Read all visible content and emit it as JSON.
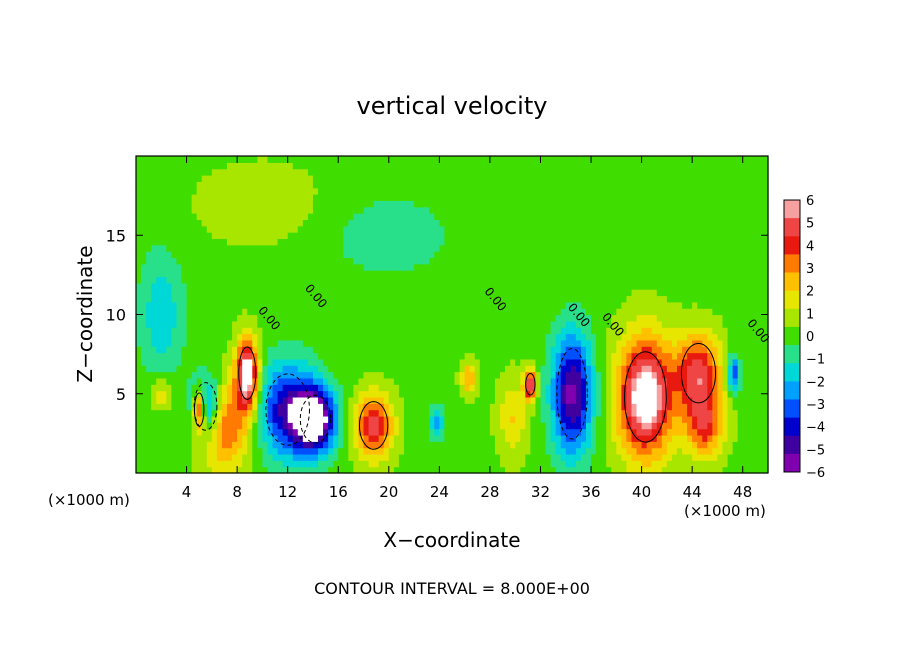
{
  "chart_data": {
    "type": "heatmap",
    "title": "vertical velocity",
    "xlabel": "X−coordinate",
    "ylabel": "Z−coordinate",
    "x_unit_left": "(×1000 m)",
    "x_unit_right": "(×1000 m)",
    "xlim": [
      0,
      50
    ],
    "ylim": [
      0,
      20
    ],
    "xticks": [
      4,
      8,
      12,
      16,
      20,
      24,
      28,
      32,
      36,
      40,
      44,
      48
    ],
    "yticks": [
      5,
      10,
      15
    ],
    "footer": "CONTOUR INTERVAL = 8.000E+00",
    "colorbar": {
      "min": -6,
      "max": 6,
      "labels": [
        "6",
        "5",
        "4",
        "3",
        "2",
        "1",
        "0",
        "−1",
        "−2",
        "−3",
        "−4",
        "−5",
        "−6"
      ],
      "colors": [
        "#f7a0a0",
        "#f04545",
        "#e81a10",
        "#ff7a00",
        "#ffc000",
        "#e6e600",
        "#a8e600",
        "#40dd00",
        "#28e08a",
        "#00d8d8",
        "#00a0ff",
        "#0050ff",
        "#0000cc",
        "#4000a0",
        "#8000b0"
      ]
    },
    "contour_labels": [
      "0.00",
      "0.00",
      "0.00",
      "0.00",
      "0.00",
      "0.00"
    ],
    "features": [
      {
        "x": 5.0,
        "z": 4.0,
        "w": 6,
        "rx": 0.5,
        "rz": 1.4
      },
      {
        "x": 5.5,
        "z": 4.2,
        "w": -5,
        "rx": 1.2,
        "rz": 2.0
      },
      {
        "x": 8.8,
        "z": 6.3,
        "w": 7,
        "rx": 0.9,
        "rz": 2.2
      },
      {
        "x": 7.0,
        "z": 3.0,
        "w": 4,
        "rx": 2.0,
        "rz": 2.8
      },
      {
        "x": 12.0,
        "z": 4.0,
        "w": -5,
        "rx": 2.3,
        "rz": 3.0
      },
      {
        "x": 14.2,
        "z": 3.4,
        "w": -7,
        "rx": 1.6,
        "rz": 2.0
      },
      {
        "x": 18.8,
        "z": 3.0,
        "w": 5,
        "rx": 1.5,
        "rz": 2.0
      },
      {
        "x": 23.8,
        "z": 3.2,
        "w": -3,
        "rx": 0.5,
        "rz": 1.0
      },
      {
        "x": 26.3,
        "z": 6.0,
        "w": 3,
        "rx": 0.6,
        "rz": 1.0
      },
      {
        "x": 29.8,
        "z": 3.5,
        "w": 2,
        "rx": 1.2,
        "rz": 2.5
      },
      {
        "x": 31.2,
        "z": 5.6,
        "w": 6,
        "rx": 0.5,
        "rz": 0.9
      },
      {
        "x": 34.5,
        "z": 5.0,
        "w": -6,
        "rx": 1.6,
        "rz": 3.8
      },
      {
        "x": 40.3,
        "z": 4.8,
        "w": 7,
        "rx": 2.2,
        "rz": 3.8
      },
      {
        "x": 44.5,
        "z": 6.3,
        "w": 5,
        "rx": 1.8,
        "rz": 2.5
      },
      {
        "x": 45.0,
        "z": 3.0,
        "w": 4,
        "rx": 1.5,
        "rz": 2.0
      },
      {
        "x": 47.3,
        "z": 6.3,
        "w": -4,
        "rx": 0.5,
        "rz": 1.2
      },
      {
        "x": 2.0,
        "z": 10.0,
        "w": -2,
        "rx": 1.8,
        "rz": 4.0
      },
      {
        "x": 2.0,
        "z": 5.0,
        "w": 2,
        "rx": 0.8,
        "rz": 1.0
      },
      {
        "x": 20.0,
        "z": 15.0,
        "w": -1,
        "rx": 6.0,
        "rz": 3.0
      },
      {
        "x": 10.0,
        "z": 17.0,
        "w": 1,
        "rx": 5.0,
        "rz": 2.5
      }
    ]
  }
}
